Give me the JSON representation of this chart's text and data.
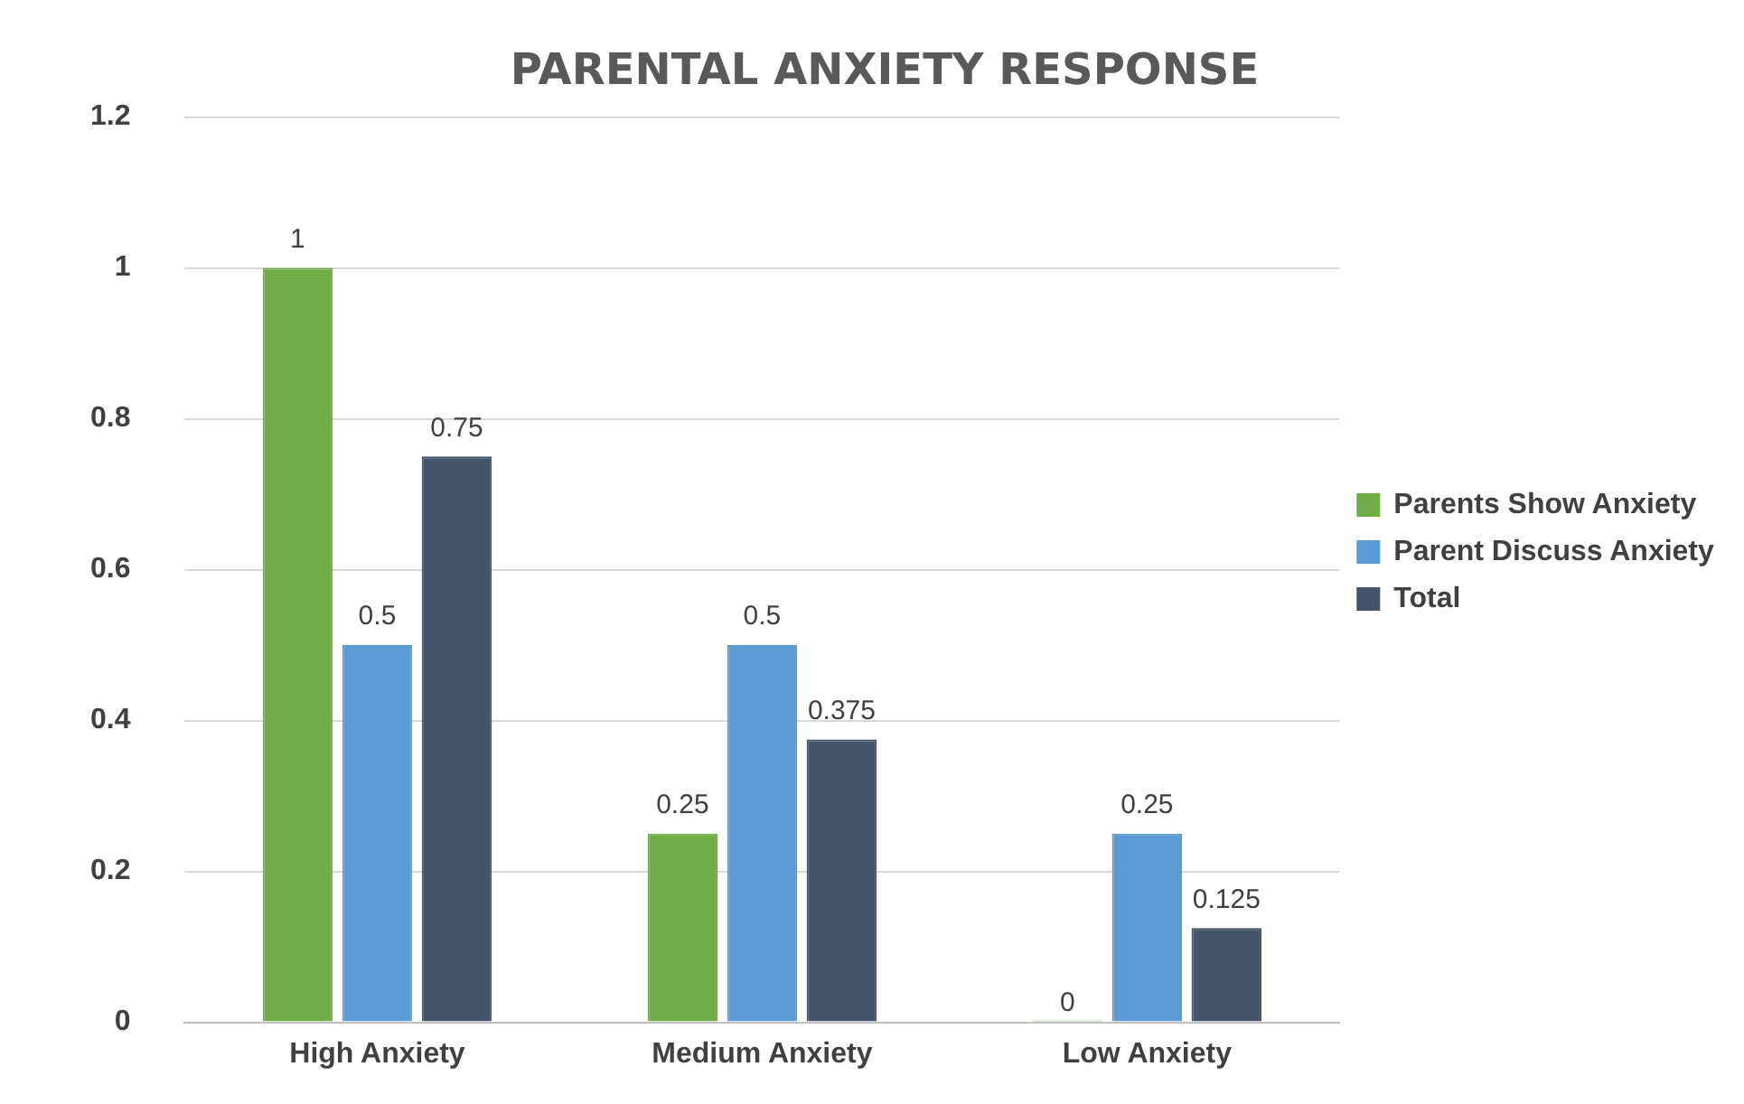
{
  "chart_data": {
    "type": "bar",
    "title": "PARENTAL ANXIETY RESPONSE",
    "categories": [
      "High Anxiety",
      "Medium Anxiety",
      "Low Anxiety"
    ],
    "series": [
      {
        "name": "Parents Show Anxiety",
        "color": "#70ad47",
        "values": [
          1,
          0.25,
          0
        ]
      },
      {
        "name": "Parent Discuss Anxiety",
        "color": "#5b9bd5",
        "values": [
          0.5,
          0.5,
          0.25
        ]
      },
      {
        "name": "Total",
        "color": "#44546a",
        "values": [
          0.75,
          0.375,
          0.125
        ]
      }
    ],
    "ylim": [
      0,
      1.2
    ],
    "yticks": [
      0,
      0.2,
      0.4,
      0.6,
      0.8,
      1,
      1.2
    ],
    "grid": "y",
    "legend": "right",
    "data_labels": true
  }
}
